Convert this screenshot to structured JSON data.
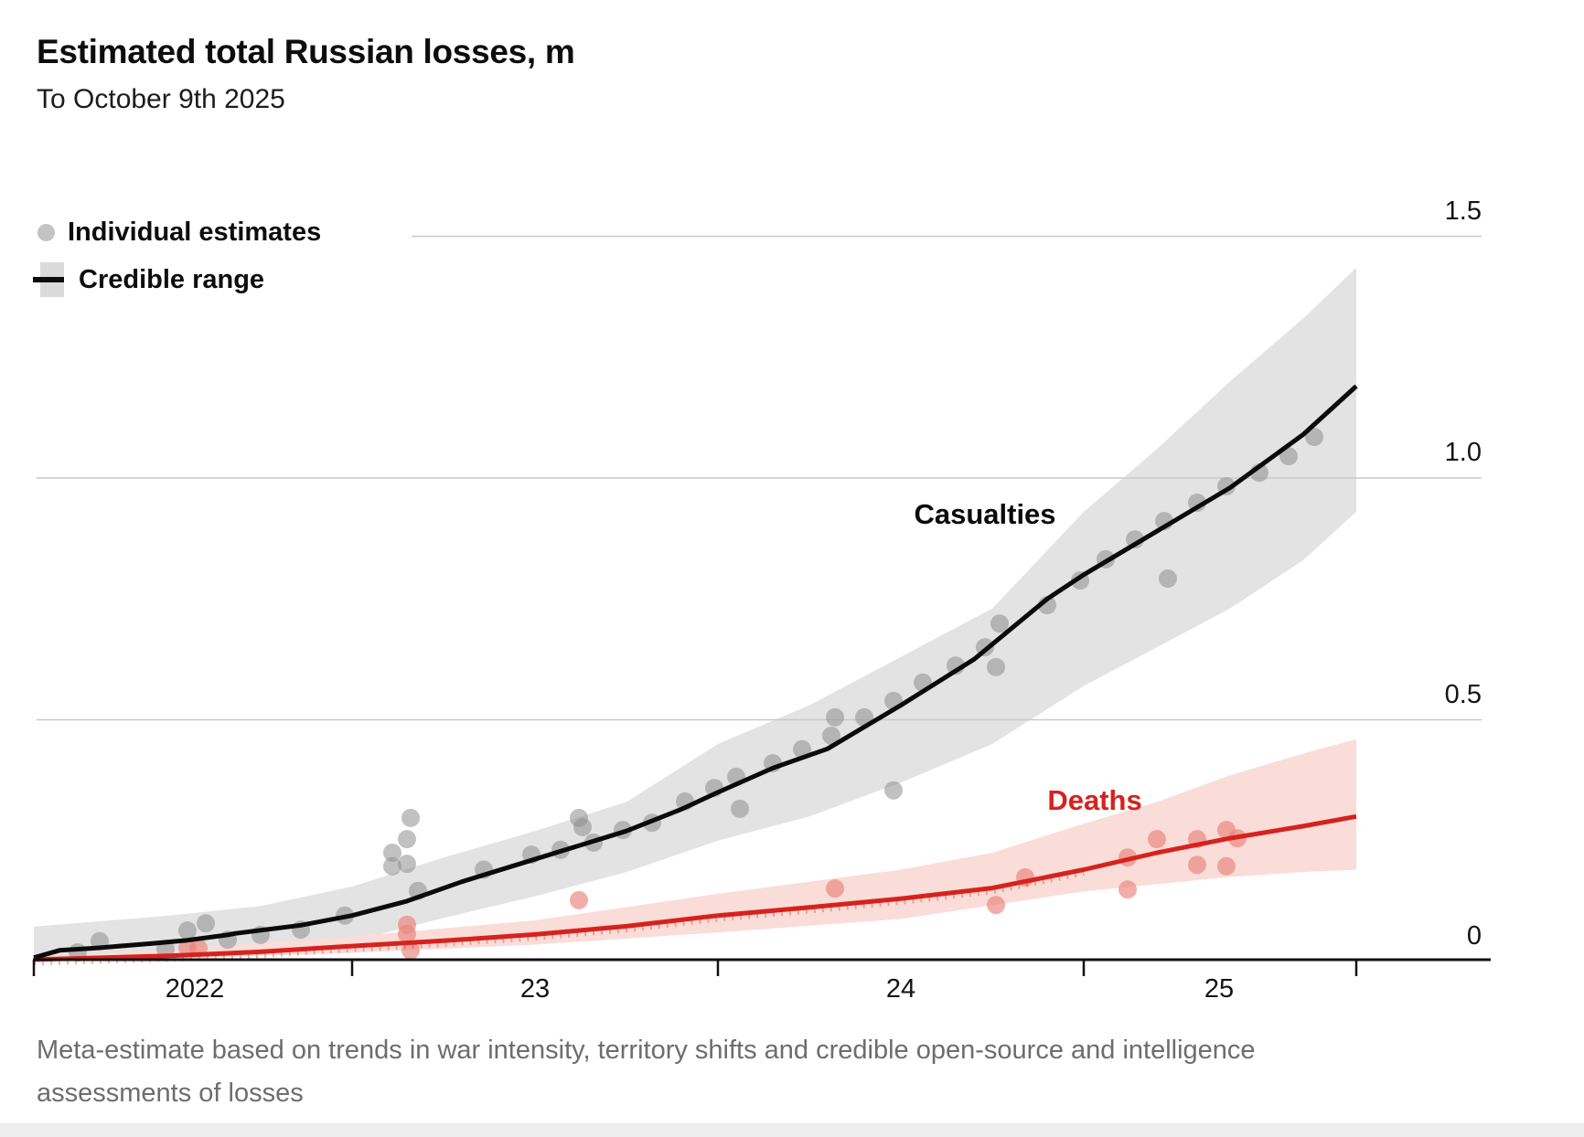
{
  "header": {
    "title": "Estimated total Russian losses, m",
    "subtitle": "To October 9th 2025"
  },
  "legend": {
    "items": [
      {
        "label": "Individual estimates",
        "marker": "gray-dot"
      },
      {
        "label": "Credible range",
        "marker": "gray-band-with-line"
      }
    ]
  },
  "footnote": "Meta-estimate based on trends in war intensity, territory shifts and credible open-source and intelligence assessments of losses",
  "colors": {
    "casualties_line": "#0b0b0b",
    "casualties_band": "#e3e3e3",
    "deaths_line": "#d6221d",
    "deaths_band": "#fadcd8",
    "estimate_dot_gray": "#8e8e8e",
    "estimate_dot_red": "#e9837b",
    "gridline": "#c9c9c9",
    "axis": "#111111"
  },
  "chart_data": {
    "type": "line",
    "title": "Estimated total Russian losses, m",
    "subtitle": "To October 9th 2025",
    "unit": "millions of people",
    "x_axis": {
      "unit": "decimal year",
      "range": [
        2022.13,
        2025.745
      ],
      "tick_positions": [
        2022.13,
        2023.0,
        2024.0,
        2025.0,
        2025.745
      ],
      "end_note": "final tick marks October 9th 2025",
      "tick_labels": [
        {
          "label": "2022",
          "x": 2022.57
        },
        {
          "label": "23",
          "x": 2023.5
        },
        {
          "label": "24",
          "x": 2024.5
        },
        {
          "label": "25",
          "x": 2025.37
        }
      ]
    },
    "y_axis": {
      "position": "right",
      "range": [
        0,
        1.5
      ],
      "ticks": [
        0,
        0.5,
        1.0,
        1.5
      ],
      "labels": [
        "0",
        "0.5",
        "1.0",
        "1.5"
      ],
      "grid": true
    },
    "series": [
      {
        "name": "Casualties",
        "color": "#0b0b0b",
        "label_at": [
          2024.73,
          0.924
        ],
        "points": [
          [
            2022.13,
            0.008
          ],
          [
            2022.2,
            0.023
          ],
          [
            2022.3,
            0.028
          ],
          [
            2022.45,
            0.037
          ],
          [
            2022.55,
            0.044
          ],
          [
            2022.66,
            0.055
          ],
          [
            2022.68,
            0.058
          ],
          [
            2022.86,
            0.075
          ],
          [
            2023.0,
            0.095
          ],
          [
            2023.15,
            0.125
          ],
          [
            2023.3,
            0.165
          ],
          [
            2023.45,
            0.2
          ],
          [
            2023.6,
            0.235
          ],
          [
            2023.75,
            0.27
          ],
          [
            2023.9,
            0.315
          ],
          [
            2024.0,
            0.35
          ],
          [
            2024.15,
            0.4
          ],
          [
            2024.3,
            0.44
          ],
          [
            2024.5,
            0.53
          ],
          [
            2024.7,
            0.625
          ],
          [
            2024.9,
            0.75
          ],
          [
            2025.0,
            0.8
          ],
          [
            2025.2,
            0.89
          ],
          [
            2025.4,
            0.98
          ],
          [
            2025.6,
            1.09
          ],
          [
            2025.745,
            1.19
          ]
        ],
        "band_upper": [
          [
            2022.13,
            0.072
          ],
          [
            2022.5,
            0.095
          ],
          [
            2022.75,
            0.115
          ],
          [
            2023.0,
            0.155
          ],
          [
            2023.25,
            0.215
          ],
          [
            2023.5,
            0.27
          ],
          [
            2023.75,
            0.33
          ],
          [
            2024.0,
            0.45
          ],
          [
            2024.25,
            0.53
          ],
          [
            2024.5,
            0.63
          ],
          [
            2024.75,
            0.73
          ],
          [
            2025.0,
            0.93
          ],
          [
            2025.2,
            1.06
          ],
          [
            2025.4,
            1.2
          ],
          [
            2025.6,
            1.33
          ],
          [
            2025.745,
            1.435
          ]
        ],
        "band_lower": [
          [
            2022.13,
            0.004
          ],
          [
            2022.5,
            0.015
          ],
          [
            2022.75,
            0.024
          ],
          [
            2023.0,
            0.042
          ],
          [
            2023.25,
            0.09
          ],
          [
            2023.5,
            0.135
          ],
          [
            2023.75,
            0.185
          ],
          [
            2024.0,
            0.25
          ],
          [
            2024.25,
            0.3
          ],
          [
            2024.5,
            0.37
          ],
          [
            2024.75,
            0.45
          ],
          [
            2025.0,
            0.57
          ],
          [
            2025.2,
            0.65
          ],
          [
            2025.4,
            0.73
          ],
          [
            2025.6,
            0.83
          ],
          [
            2025.745,
            0.93
          ]
        ]
      },
      {
        "name": "Deaths",
        "color": "#d6221d",
        "label_at": [
          2025.03,
          0.333
        ],
        "points": [
          [
            2022.13,
            0.004
          ],
          [
            2022.5,
            0.012
          ],
          [
            2022.75,
            0.02
          ],
          [
            2023.0,
            0.032
          ],
          [
            2023.25,
            0.043
          ],
          [
            2023.5,
            0.056
          ],
          [
            2023.75,
            0.073
          ],
          [
            2024.0,
            0.095
          ],
          [
            2024.25,
            0.112
          ],
          [
            2024.5,
            0.13
          ],
          [
            2024.75,
            0.152
          ],
          [
            2025.0,
            0.19
          ],
          [
            2025.2,
            0.225
          ],
          [
            2025.4,
            0.255
          ],
          [
            2025.6,
            0.28
          ],
          [
            2025.745,
            0.3
          ]
        ],
        "band_upper": [
          [
            2022.13,
            0.012
          ],
          [
            2022.5,
            0.025
          ],
          [
            2023.0,
            0.052
          ],
          [
            2023.5,
            0.085
          ],
          [
            2024.0,
            0.14
          ],
          [
            2024.5,
            0.19
          ],
          [
            2024.75,
            0.225
          ],
          [
            2025.0,
            0.285
          ],
          [
            2025.2,
            0.33
          ],
          [
            2025.4,
            0.385
          ],
          [
            2025.6,
            0.43
          ],
          [
            2025.745,
            0.46
          ]
        ],
        "band_lower": [
          [
            2022.13,
            0.0
          ],
          [
            2022.5,
            0.006
          ],
          [
            2023.0,
            0.018
          ],
          [
            2023.5,
            0.035
          ],
          [
            2024.0,
            0.06
          ],
          [
            2024.5,
            0.088
          ],
          [
            2025.0,
            0.145
          ],
          [
            2025.2,
            0.16
          ],
          [
            2025.4,
            0.175
          ],
          [
            2025.6,
            0.185
          ],
          [
            2025.745,
            0.19
          ]
        ]
      }
    ],
    "scatter": [
      {
        "name": "Individual estimates (casualties)",
        "color": "#8e8e8e",
        "points": [
          [
            2022.25,
            0.019
          ],
          [
            2022.31,
            0.042
          ],
          [
            2022.49,
            0.026
          ],
          [
            2022.55,
            0.064
          ],
          [
            2022.6,
            0.079
          ],
          [
            2022.66,
            0.045
          ],
          [
            2022.75,
            0.055
          ],
          [
            2022.86,
            0.066
          ],
          [
            2022.98,
            0.095
          ],
          [
            2023.11,
            0.225
          ],
          [
            2023.15,
            0.253
          ],
          [
            2023.11,
            0.197
          ],
          [
            2023.15,
            0.202
          ],
          [
            2023.16,
            0.297
          ],
          [
            2023.18,
            0.146
          ],
          [
            2023.36,
            0.19
          ],
          [
            2023.49,
            0.221
          ],
          [
            2023.57,
            0.231
          ],
          [
            2023.62,
            0.297
          ],
          [
            2023.63,
            0.278
          ],
          [
            2023.66,
            0.246
          ],
          [
            2023.74,
            0.272
          ],
          [
            2023.82,
            0.287
          ],
          [
            2023.91,
            0.331
          ],
          [
            2023.99,
            0.359
          ],
          [
            2024.05,
            0.382
          ],
          [
            2024.06,
            0.316
          ],
          [
            2024.15,
            0.41
          ],
          [
            2024.23,
            0.439
          ],
          [
            2024.31,
            0.467
          ],
          [
            2024.32,
            0.505
          ],
          [
            2024.4,
            0.505
          ],
          [
            2024.48,
            0.539
          ],
          [
            2024.48,
            0.354
          ],
          [
            2024.56,
            0.577
          ],
          [
            2024.65,
            0.612
          ],
          [
            2024.73,
            0.65
          ],
          [
            2024.76,
            0.609
          ],
          [
            2024.77,
            0.699
          ],
          [
            2024.9,
            0.737
          ],
          [
            2024.99,
            0.788
          ],
          [
            2025.06,
            0.832
          ],
          [
            2025.14,
            0.873
          ],
          [
            2025.22,
            0.911
          ],
          [
            2025.23,
            0.792
          ],
          [
            2025.31,
            0.949
          ],
          [
            2025.39,
            0.983
          ],
          [
            2025.48,
            1.011
          ],
          [
            2025.56,
            1.045
          ],
          [
            2025.63,
            1.085
          ]
        ]
      },
      {
        "name": "Individual estimates (deaths)",
        "color": "#e9837b",
        "points": [
          [
            2022.55,
            0.028
          ],
          [
            2022.58,
            0.028
          ],
          [
            2023.15,
            0.076
          ],
          [
            2023.15,
            0.057
          ],
          [
            2023.16,
            0.023
          ],
          [
            2023.62,
            0.127
          ],
          [
            2024.32,
            0.151
          ],
          [
            2024.76,
            0.117
          ],
          [
            2024.84,
            0.174
          ],
          [
            2025.12,
            0.215
          ],
          [
            2025.12,
            0.149
          ],
          [
            2025.2,
            0.253
          ],
          [
            2025.31,
            0.253
          ],
          [
            2025.31,
            0.2
          ],
          [
            2025.39,
            0.272
          ],
          [
            2025.42,
            0.255
          ],
          [
            2025.39,
            0.197
          ]
        ]
      }
    ]
  }
}
